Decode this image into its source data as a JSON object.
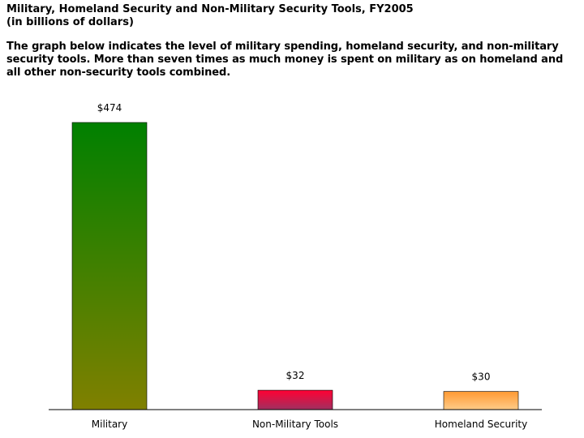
{
  "header": {
    "title": "Military, Homeland Security and Non-Military Security Tools, FY2005",
    "subtitle": "(in billions of dollars)",
    "description": "The graph below indicates the level of military spending, homeland security, and non-military security tools. More than seven times as much money is spent on military as on homeland and all other non-security tools combined."
  },
  "chart_data": {
    "type": "bar",
    "categories": [
      "Military",
      "Non-Military Tools",
      "Homeland Security"
    ],
    "values": [
      474,
      32,
      30
    ],
    "value_labels": [
      "$474",
      "$32",
      "$30"
    ],
    "title": "Military, Homeland Security and Non-Military Security Tools, FY2005",
    "subtitle": "(in billions of dollars)",
    "xlabel": "",
    "ylabel": "",
    "ylim": [
      0,
      474
    ],
    "grid": false,
    "legend": "none",
    "colors": {
      "Military": {
        "top": "#008000",
        "bottom": "#808000"
      },
      "Non-Military Tools": {
        "top": "#ff0033",
        "bottom": "#a03060"
      },
      "Homeland Security": {
        "top": "#ff9933",
        "bottom": "#ffcc88"
      }
    },
    "axis_color": "#000000"
  }
}
